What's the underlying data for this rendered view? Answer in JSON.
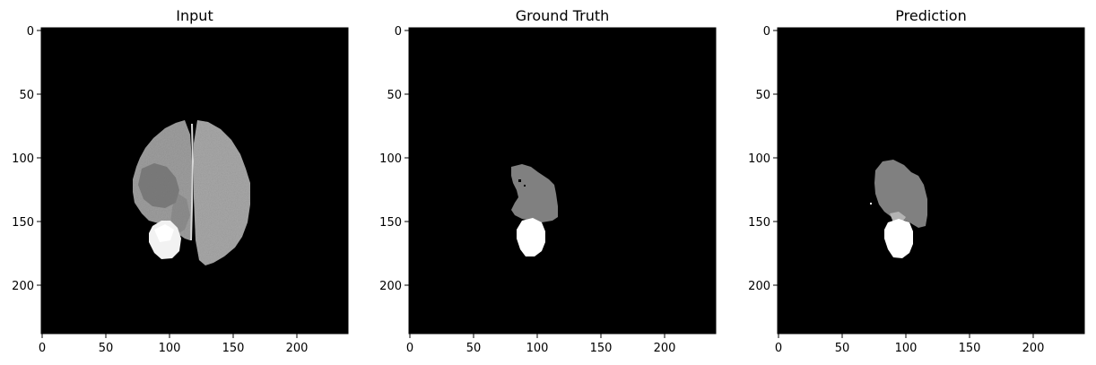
{
  "figure": {
    "background": "#ffffff",
    "panels": [
      {
        "id": "input",
        "title": "Input",
        "x_ticks": [
          "0",
          "50",
          "100",
          "150",
          "200"
        ],
        "y_ticks": [
          "0",
          "50",
          "100",
          "150",
          "200"
        ],
        "image": "axial brain MRI slice with bright lesion near lower-left hemisphere"
      },
      {
        "id": "ground_truth",
        "title": "Ground Truth",
        "x_ticks": [
          "0",
          "50",
          "100",
          "150",
          "200"
        ],
        "y_ticks": [
          "0",
          "50",
          "100",
          "150",
          "200"
        ],
        "image": "segmentation mask: gray edema region and white enhancing tumor"
      },
      {
        "id": "prediction",
        "title": "Prediction",
        "x_ticks": [
          "0",
          "50",
          "100",
          "150",
          "200"
        ],
        "y_ticks": [
          "0",
          "50",
          "100",
          "150",
          "200"
        ],
        "image": "predicted segmentation mask: gray edema region and white enhancing tumor"
      }
    ],
    "colors": {
      "panel_bg": "#000000",
      "edema": "#808080",
      "tumor_core": "#b4b4b4",
      "enhancing": "#ffffff"
    }
  }
}
